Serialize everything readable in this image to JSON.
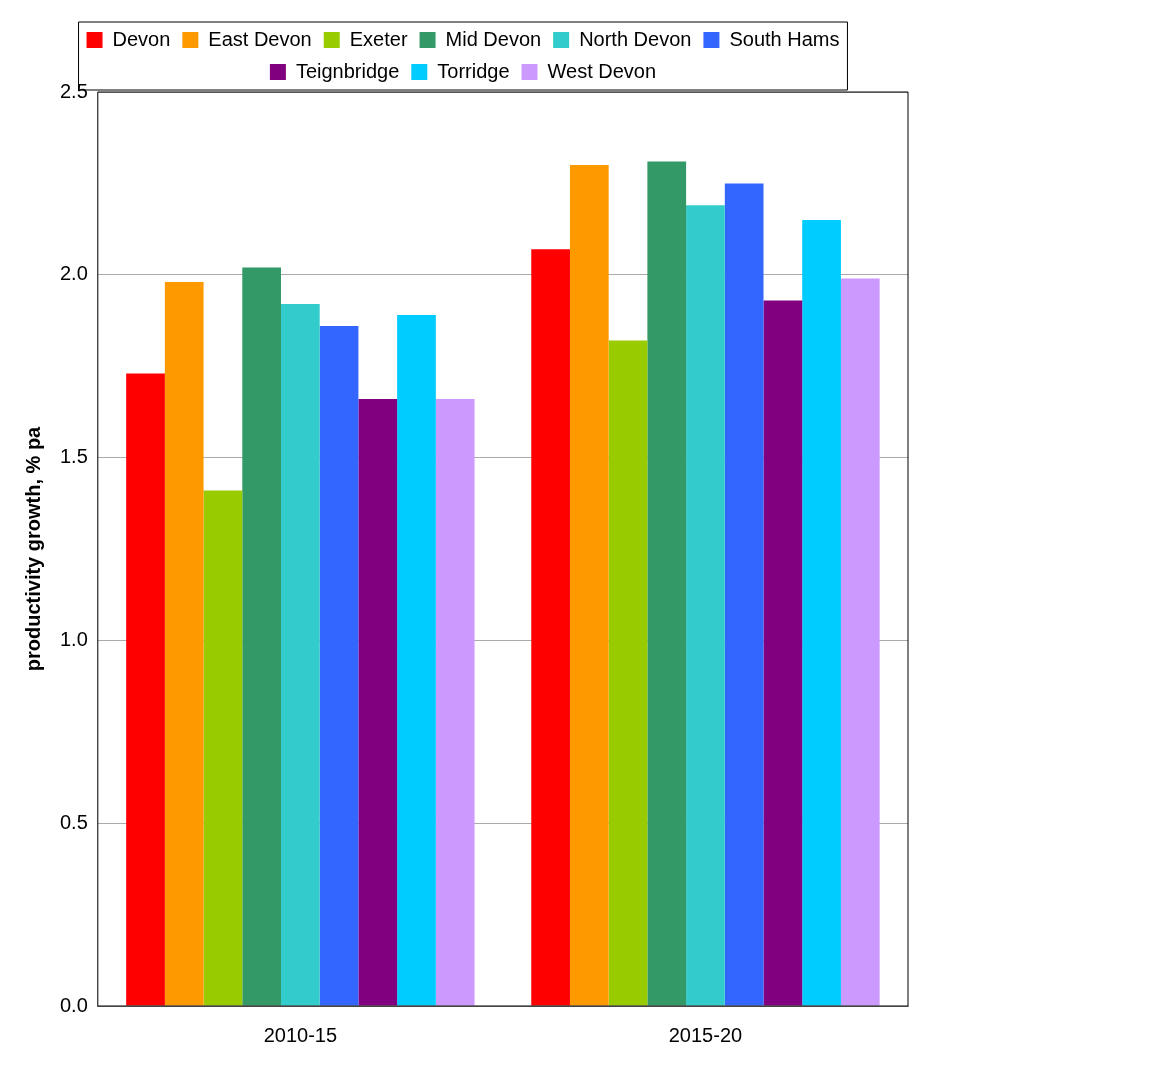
{
  "chart_data": {
    "type": "bar",
    "ylabel": "productivity growth, % pa",
    "categories": [
      "2010-15",
      "2015-20"
    ],
    "series": [
      {
        "name": "Devon",
        "color": "#ff0000",
        "values": [
          1.73,
          2.07
        ]
      },
      {
        "name": "East Devon",
        "color": "#ff9900",
        "values": [
          1.98,
          2.3
        ]
      },
      {
        "name": "Exeter",
        "color": "#99cc00",
        "values": [
          1.41,
          1.82
        ]
      },
      {
        "name": "Mid Devon",
        "color": "#339966",
        "values": [
          2.02,
          2.31
        ]
      },
      {
        "name": "North Devon",
        "color": "#33cccc",
        "values": [
          1.92,
          2.19
        ]
      },
      {
        "name": "South Hams",
        "color": "#3366ff",
        "values": [
          1.86,
          2.25
        ]
      },
      {
        "name": "Teignbridge",
        "color": "#800080",
        "values": [
          1.66,
          1.93
        ]
      },
      {
        "name": "Torridge",
        "color": "#00ccff",
        "values": [
          1.89,
          2.15
        ]
      },
      {
        "name": "West Devon",
        "color": "#cc99ff",
        "values": [
          1.66,
          1.99
        ]
      }
    ],
    "ylim": [
      0,
      2.5
    ],
    "yticks": [
      {
        "value": 0,
        "label": "0.0"
      },
      {
        "value": 0.5,
        "label": "0.5"
      },
      {
        "value": 1,
        "label": "1.0"
      },
      {
        "value": 1.5,
        "label": "1.5"
      },
      {
        "value": 2,
        "label": "2.0"
      },
      {
        "value": 2.5,
        "label": "2.5"
      }
    ],
    "grid": "y",
    "legend": "top"
  }
}
